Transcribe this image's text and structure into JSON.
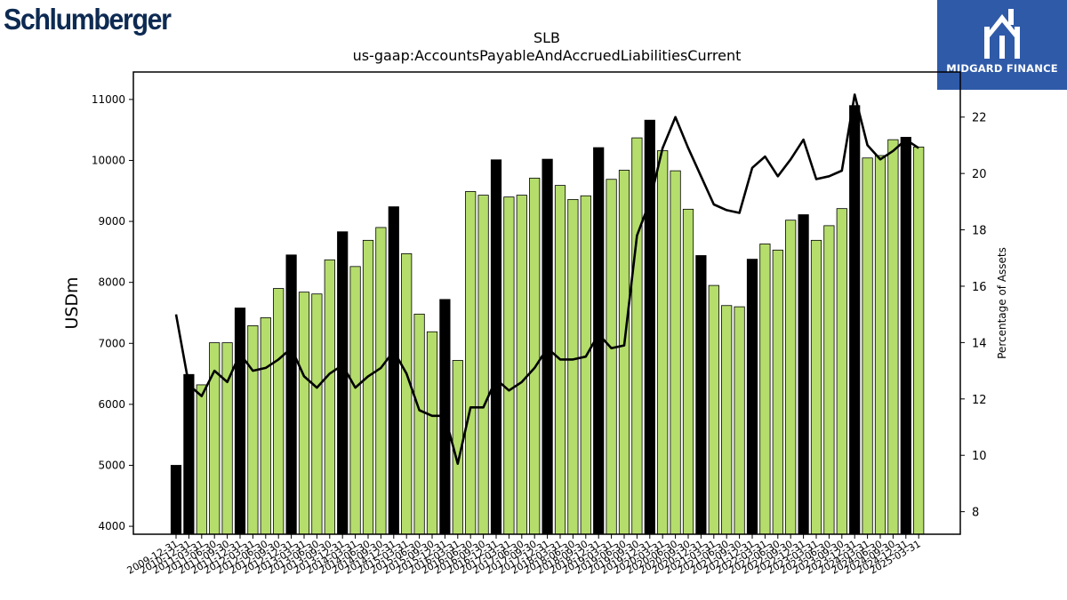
{
  "logos": {
    "left_text": "Schlumberger",
    "right_text": "MIDGARD FINANCE",
    "right_bg": "#2f5aa8"
  },
  "chart_data": {
    "type": "bar",
    "title": "SLB",
    "subtitle": "us-gaap:AccountsPayableAndAccruedLiabilitiesCurrent",
    "ylabel": "USDm",
    "y2label": "Percentage of Assets",
    "ylim": [
      3870,
      11450
    ],
    "y2lim": [
      7.2,
      23.6
    ],
    "yticks": [
      4000,
      5000,
      6000,
      7000,
      8000,
      9000,
      10000,
      11000
    ],
    "y2ticks": [
      8,
      10,
      12,
      14,
      16,
      18,
      20,
      22
    ],
    "colors": {
      "quarter_bar": "#b5dd6c",
      "year_end_bar": "#000000",
      "line": "#000000"
    },
    "categories": [
      "2009-12-31",
      "2010-12-31",
      "2011-03-31",
      "2011-06-30",
      "2011-09-30",
      "2011-12-31",
      "2012-03-31",
      "2012-06-30",
      "2012-09-30",
      "2012-12-31",
      "2013-03-31",
      "2013-06-30",
      "2013-09-30",
      "2013-12-31",
      "2014-03-31",
      "2014-06-30",
      "2014-09-30",
      "2014-12-31",
      "2015-03-31",
      "2015-06-30",
      "2015-09-30",
      "2015-12-31",
      "2016-03-31",
      "2016-06-30",
      "2016-09-30",
      "2016-12-31",
      "2017-03-31",
      "2017-06-30",
      "2017-09-30",
      "2017-12-31",
      "2018-03-31",
      "2018-06-30",
      "2018-09-30",
      "2018-12-31",
      "2019-03-31",
      "2019-06-30",
      "2019-09-30",
      "2019-12-31",
      "2020-03-31",
      "2020-06-30",
      "2020-09-30",
      "2020-12-31",
      "2021-03-31",
      "2021-06-30",
      "2021-09-30",
      "2021-12-31",
      "2022-03-31",
      "2022-06-30",
      "2022-09-30",
      "2022-12-31",
      "2023-03-31",
      "2023-06-30",
      "2023-09-30",
      "2023-12-31",
      "2024-03-31",
      "2024-06-30",
      "2024-09-30",
      "2024-12-31",
      "2025-03-31"
    ],
    "series": [
      {
        "kind": "bar",
        "values": [
          5000,
          6490,
          6320,
          7010,
          7010,
          7580,
          7290,
          7420,
          7900,
          8450,
          7840,
          7810,
          8370,
          8830,
          8260,
          8690,
          8900,
          9240,
          8470,
          7480,
          7190,
          7720,
          6720,
          9490,
          9430,
          10010,
          9400,
          9430,
          9710,
          10020,
          9590,
          9360,
          9420,
          10210,
          9690,
          9840,
          10370,
          10660,
          10160,
          9830,
          9200,
          8440,
          7950,
          7620,
          7600,
          8380,
          8630,
          8530,
          9020,
          9110,
          8690,
          8930,
          9210,
          10900,
          10040,
          10080,
          10340,
          10380,
          10220
        ],
        "year_end": [
          true,
          true,
          false,
          false,
          false,
          true,
          false,
          false,
          false,
          true,
          false,
          false,
          false,
          true,
          false,
          false,
          false,
          true,
          false,
          false,
          false,
          true,
          false,
          false,
          false,
          true,
          false,
          false,
          false,
          true,
          false,
          false,
          false,
          true,
          false,
          false,
          false,
          true,
          false,
          false,
          false,
          true,
          false,
          false,
          false,
          true,
          false,
          false,
          false,
          true,
          false,
          false,
          false,
          true,
          false,
          false,
          false,
          true,
          false
        ]
      },
      {
        "kind": "line",
        "axis": "y2",
        "values": [
          15.0,
          12.5,
          12.1,
          13.0,
          12.6,
          13.6,
          13.0,
          13.1,
          13.4,
          13.8,
          12.8,
          12.4,
          12.9,
          13.2,
          12.4,
          12.8,
          13.1,
          13.7,
          12.9,
          11.6,
          11.4,
          11.4,
          9.7,
          11.7,
          11.7,
          12.7,
          12.3,
          12.6,
          13.1,
          13.8,
          13.4,
          13.4,
          13.5,
          14.3,
          13.8,
          13.9,
          17.8,
          19.0,
          20.9,
          22.0,
          20.9,
          19.9,
          18.9,
          18.7,
          18.6,
          20.2,
          20.6,
          19.9,
          20.5,
          21.2,
          19.8,
          19.9,
          20.1,
          22.8,
          21.0,
          20.5,
          20.8,
          21.2,
          20.9
        ]
      }
    ]
  }
}
